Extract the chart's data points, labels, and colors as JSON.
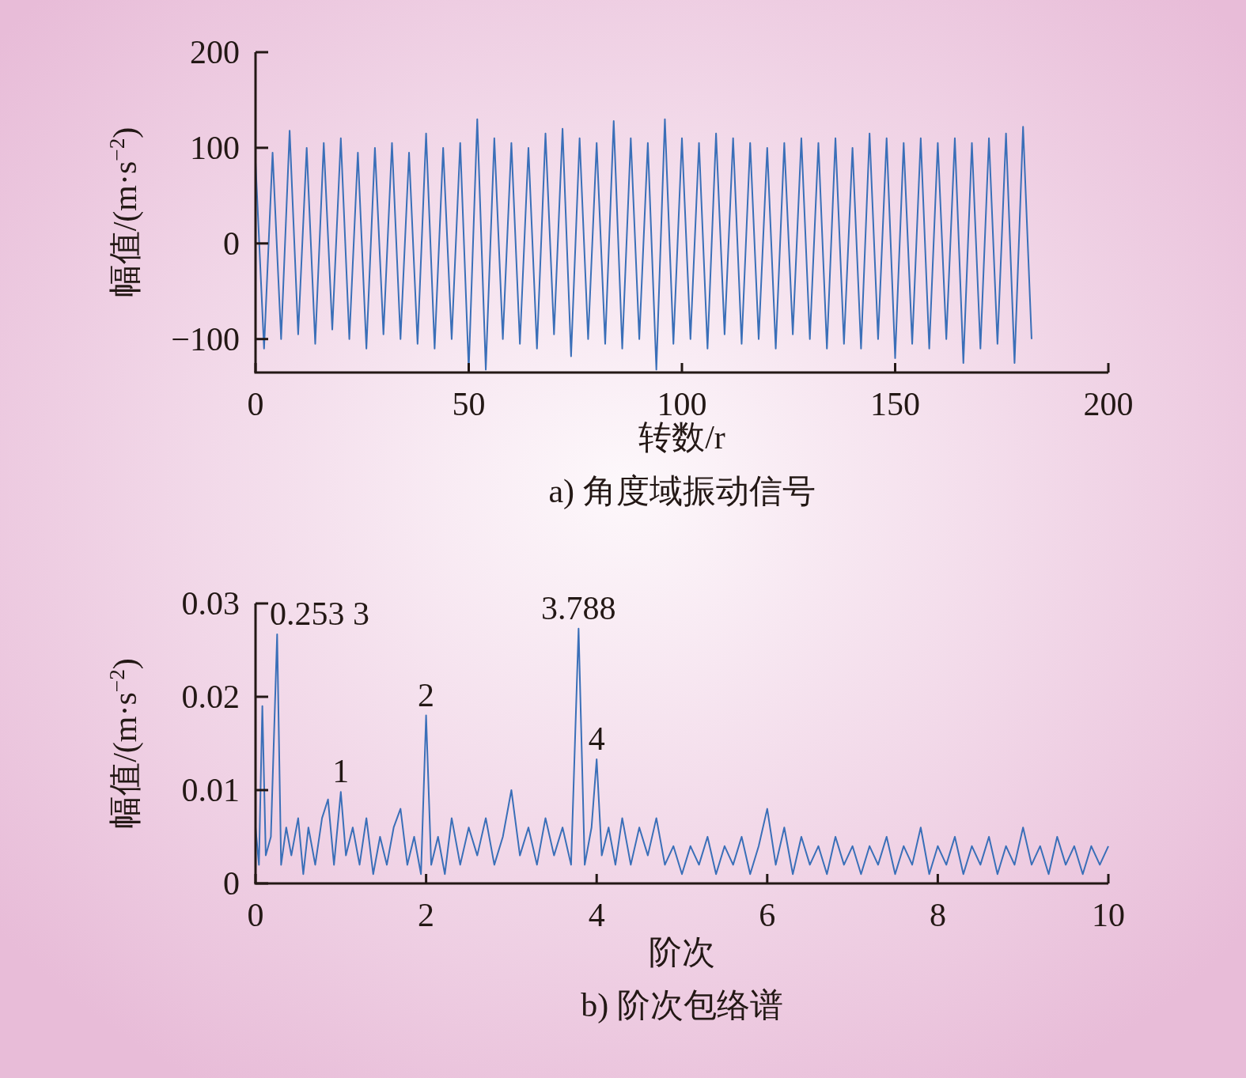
{
  "chart_data": [
    {
      "type": "line",
      "title": "a) 角度域振动信号",
      "xlabel": "转数/r",
      "ylabel": "幅值/(m·s$^{−2}$)",
      "xlim": [
        0,
        200
      ],
      "ylim": [
        -135,
        200
      ],
      "xticks": [
        0,
        50,
        100,
        150,
        200
      ],
      "yticks": [
        {
          "value": -100,
          "label": "−100"
        },
        0,
        100,
        200
      ],
      "grid": false,
      "series": [
        {
          "color": "#3a6fb8",
          "x": [
            0,
            2,
            4,
            6,
            8,
            10,
            12,
            14,
            16,
            18,
            20,
            22,
            24,
            26,
            28,
            30,
            32,
            34,
            36,
            38,
            40,
            42,
            44,
            46,
            48,
            50,
            52,
            54,
            56,
            58,
            60,
            62,
            64,
            66,
            68,
            70,
            72,
            74,
            76,
            78,
            80,
            82,
            84,
            86,
            88,
            90,
            92,
            94,
            96,
            98,
            100,
            102,
            104,
            106,
            108,
            110,
            112,
            114,
            116,
            118,
            120,
            122,
            124,
            126,
            128,
            130,
            132,
            134,
            136,
            138,
            140,
            142,
            144,
            146,
            148,
            150,
            152,
            154,
            156,
            158,
            160,
            162,
            164,
            166,
            168,
            170,
            172,
            174,
            176,
            178,
            180,
            182
          ],
          "values": [
            85,
            -110,
            95,
            -100,
            118,
            -95,
            100,
            -105,
            105,
            -90,
            110,
            -100,
            95,
            -110,
            100,
            -95,
            105,
            -100,
            95,
            -105,
            115,
            -110,
            100,
            -100,
            105,
            -132,
            130,
            -132,
            110,
            -100,
            105,
            -105,
            100,
            -110,
            115,
            -95,
            120,
            -118,
            110,
            -100,
            105,
            -105,
            128,
            -110,
            110,
            -100,
            105,
            -132,
            130,
            -105,
            110,
            -100,
            105,
            -110,
            115,
            -95,
            110,
            -105,
            105,
            -100,
            100,
            -110,
            105,
            -95,
            110,
            -100,
            105,
            -110,
            110,
            -105,
            100,
            -110,
            115,
            -100,
            110,
            -120,
            105,
            -105,
            110,
            -110,
            105,
            -100,
            110,
            -125,
            105,
            -110,
            110,
            -105,
            115,
            -125,
            122,
            -100
          ]
        }
      ]
    },
    {
      "type": "line",
      "title": "b) 阶次包络谱",
      "xlabel": "阶次",
      "ylabel": "幅值/(m·s$^{−2}$)",
      "xlim": [
        0,
        10
      ],
      "ylim": [
        0,
        0.03
      ],
      "xticks": [
        0,
        2,
        4,
        6,
        8,
        10
      ],
      "yticks": [
        0,
        0.01,
        0.02,
        0.03
      ],
      "grid": false,
      "annotations": [
        {
          "text": "0.253 3",
          "x": 0.2533,
          "y": 0.0267
        },
        {
          "text": "1",
          "x": 1.0,
          "y": 0.0098
        },
        {
          "text": "2",
          "x": 2.0,
          "y": 0.018
        },
        {
          "text": "3.788",
          "x": 3.788,
          "y": 0.0273
        },
        {
          "text": "4",
          "x": 4.0,
          "y": 0.0133
        }
      ],
      "series": [
        {
          "color": "#3a6fb8",
          "x": [
            0,
            0.04,
            0.08,
            0.12,
            0.18,
            0.2533,
            0.3,
            0.36,
            0.42,
            0.5,
            0.56,
            0.62,
            0.7,
            0.78,
            0.85,
            0.92,
            1.0,
            1.06,
            1.14,
            1.22,
            1.3,
            1.38,
            1.46,
            1.54,
            1.62,
            1.7,
            1.78,
            1.86,
            1.94,
            2.0,
            2.06,
            2.14,
            2.22,
            2.3,
            2.4,
            2.5,
            2.6,
            2.7,
            2.8,
            2.9,
            3.0,
            3.1,
            3.2,
            3.3,
            3.4,
            3.5,
            3.6,
            3.7,
            3.788,
            3.86,
            3.94,
            4.0,
            4.06,
            4.14,
            4.22,
            4.3,
            4.4,
            4.5,
            4.6,
            4.7,
            4.8,
            4.9,
            5.0,
            5.1,
            5.2,
            5.3,
            5.4,
            5.5,
            5.6,
            5.7,
            5.8,
            5.9,
            6.0,
            6.1,
            6.2,
            6.3,
            6.4,
            6.5,
            6.6,
            6.7,
            6.8,
            6.9,
            7.0,
            7.1,
            7.2,
            7.3,
            7.4,
            7.5,
            7.6,
            7.7,
            7.8,
            7.9,
            8.0,
            8.1,
            8.2,
            8.3,
            8.4,
            8.5,
            8.6,
            8.7,
            8.8,
            8.9,
            9.0,
            9.1,
            9.2,
            9.3,
            9.4,
            9.5,
            9.6,
            9.7,
            9.8,
            9.9,
            10.0
          ],
          "values": [
            0.006,
            0.002,
            0.019,
            0.003,
            0.005,
            0.0267,
            0.002,
            0.006,
            0.003,
            0.007,
            0.001,
            0.006,
            0.002,
            0.007,
            0.009,
            0.002,
            0.0098,
            0.003,
            0.006,
            0.002,
            0.007,
            0.001,
            0.005,
            0.002,
            0.006,
            0.008,
            0.002,
            0.005,
            0.001,
            0.018,
            0.002,
            0.005,
            0.001,
            0.007,
            0.002,
            0.006,
            0.003,
            0.007,
            0.002,
            0.005,
            0.01,
            0.003,
            0.006,
            0.002,
            0.007,
            0.003,
            0.006,
            0.002,
            0.0273,
            0.002,
            0.006,
            0.0133,
            0.003,
            0.006,
            0.002,
            0.007,
            0.002,
            0.006,
            0.003,
            0.007,
            0.002,
            0.004,
            0.001,
            0.004,
            0.002,
            0.005,
            0.001,
            0.004,
            0.002,
            0.005,
            0.001,
            0.004,
            0.008,
            0.002,
            0.006,
            0.001,
            0.005,
            0.002,
            0.004,
            0.001,
            0.005,
            0.002,
            0.004,
            0.001,
            0.004,
            0.002,
            0.005,
            0.001,
            0.004,
            0.002,
            0.006,
            0.001,
            0.004,
            0.002,
            0.005,
            0.001,
            0.004,
            0.002,
            0.005,
            0.001,
            0.004,
            0.002,
            0.006,
            0.002,
            0.004,
            0.001,
            0.005,
            0.002,
            0.004,
            0.001,
            0.004,
            0.002,
            0.004
          ]
        }
      ]
    }
  ]
}
